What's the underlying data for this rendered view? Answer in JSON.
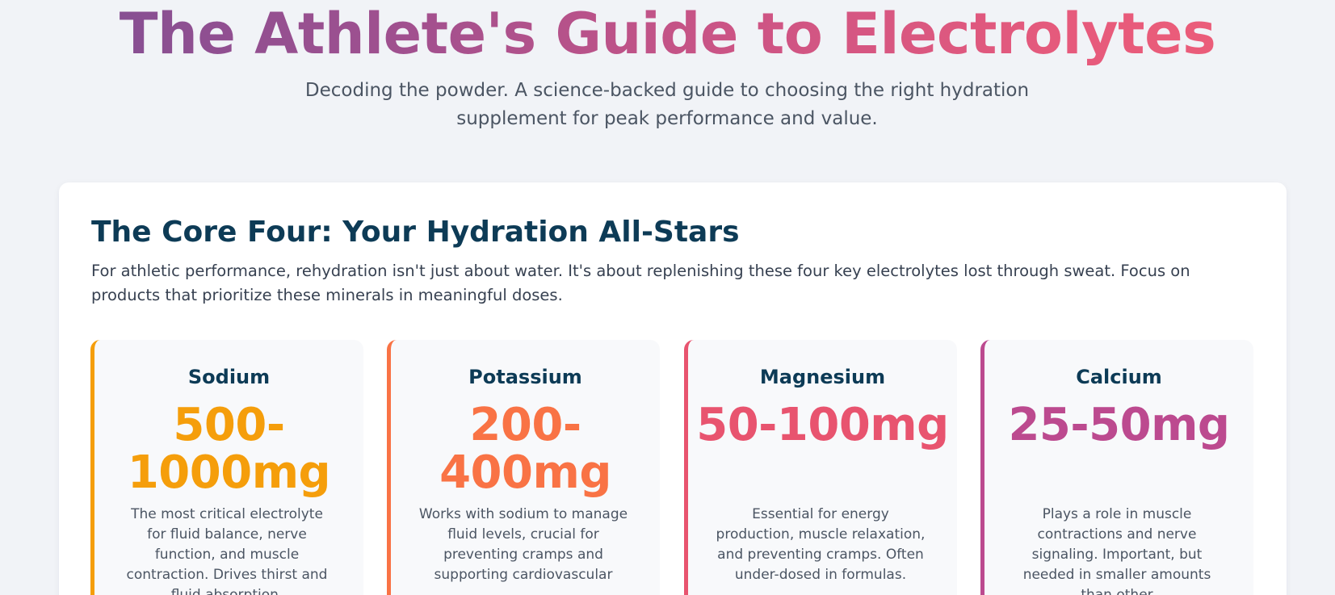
{
  "header": {
    "title": "The Athlete's Guide to Electrolytes",
    "subtitle": "Decoding the powder. A science-backed guide to choosing the right hydration supplement for peak performance and value."
  },
  "core_four": {
    "title": "The Core Four: Your Hydration All-Stars",
    "description": "For athletic performance, rehydration isn't just about water. It's about replenishing these four key electrolytes lost through sweat. Focus on products that prioritize these minerals in meaningful doses.",
    "cards": [
      {
        "name": "Sodium",
        "dose": "500-1000mg",
        "text": "The most critical electrolyte for fluid balance, nerve function, and muscle contraction. Drives thirst and fluid absorption.",
        "color": "#f59e0b"
      },
      {
        "name": "Potassium",
        "dose": "200-400mg",
        "text": "Works with sodium to manage fluid levels, crucial for preventing cramps and supporting cardiovascular",
        "color": "#f97345"
      },
      {
        "name": "Magnesium",
        "dose": "50-100mg",
        "text": "Essential for energy production, muscle relaxation, and preventing cramps. Often under-dosed in formulas.",
        "color": "#e8546f"
      },
      {
        "name": "Calcium",
        "dose": "25-50mg",
        "text": "Plays a role in muscle contractions and nerve signaling. Important, but needed in smaller amounts than other",
        "color": "#bc4a8f"
      }
    ]
  }
}
